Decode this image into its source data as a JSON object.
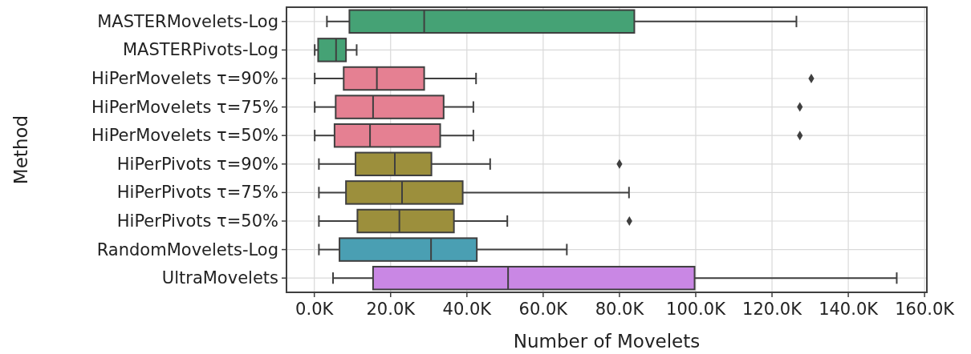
{
  "chart_data": {
    "type": "box",
    "xlabel": "Number of Movelets",
    "ylabel": "Method",
    "orientation": "horizontal",
    "grid": true,
    "marker": "diamond",
    "categories": [
      "MASTERMovelets-Log",
      "MASTERPivots-Log",
      "HiPerMovelets τ=90%",
      "HiPerMovelets τ=75%",
      "HiPerMovelets τ=50%",
      "HiPerPivots τ=90%",
      "HiPerPivots τ=75%",
      "HiPerPivots τ=50%",
      "RandomMovelets-Log",
      "UltraMovelets"
    ],
    "colors": [
      "#45a275",
      "#45a275",
      "#e58092",
      "#e58092",
      "#e58092",
      "#9c8f3c",
      "#9c8f3c",
      "#9c8f3c",
      "#4a9fb3",
      "#c987e4"
    ],
    "boxes": [
      {
        "low": 3300,
        "q1": 9200,
        "median": 28800,
        "q3": 83900,
        "high": 126400
      },
      {
        "low": 100,
        "q1": 1000,
        "median": 5700,
        "q3": 8300,
        "high": 11100
      },
      {
        "low": 100,
        "q1": 7700,
        "median": 16400,
        "q3": 28800,
        "high": 42400,
        "outliers": [
          130300
        ]
      },
      {
        "low": 100,
        "q1": 5600,
        "median": 15400,
        "q3": 33900,
        "high": 41700,
        "outliers": [
          127300
        ]
      },
      {
        "low": 100,
        "q1": 5300,
        "median": 14600,
        "q3": 33000,
        "high": 41700,
        "outliers": [
          127300
        ]
      },
      {
        "low": 1200,
        "q1": 10800,
        "median": 21100,
        "q3": 30700,
        "high": 46100,
        "outliers": [
          80000
        ]
      },
      {
        "low": 1200,
        "q1": 8300,
        "median": 23000,
        "q3": 38900,
        "high": 82500
      },
      {
        "low": 1200,
        "q1": 11300,
        "median": 22300,
        "q3": 36600,
        "high": 50600,
        "outliers": [
          82600
        ]
      },
      {
        "low": 1200,
        "q1": 6600,
        "median": 30600,
        "q3": 42600,
        "high": 66200
      },
      {
        "low": 4900,
        "q1": 15400,
        "median": 50800,
        "q3": 99700,
        "high": 152700
      }
    ],
    "xlim": [
      -7300,
      160600
    ],
    "xticks": [
      {
        "value": 0,
        "label": "0.0K"
      },
      {
        "value": 20000,
        "label": "20.0K"
      },
      {
        "value": 40000,
        "label": "40.0K"
      },
      {
        "value": 60000,
        "label": "60.0K"
      },
      {
        "value": 80000,
        "label": "80.0K"
      },
      {
        "value": 100000,
        "label": "100.0K"
      },
      {
        "value": 120000,
        "label": "120.0K"
      },
      {
        "value": 140000,
        "label": "140.0K"
      },
      {
        "value": 160000,
        "label": "160.0K"
      }
    ]
  }
}
